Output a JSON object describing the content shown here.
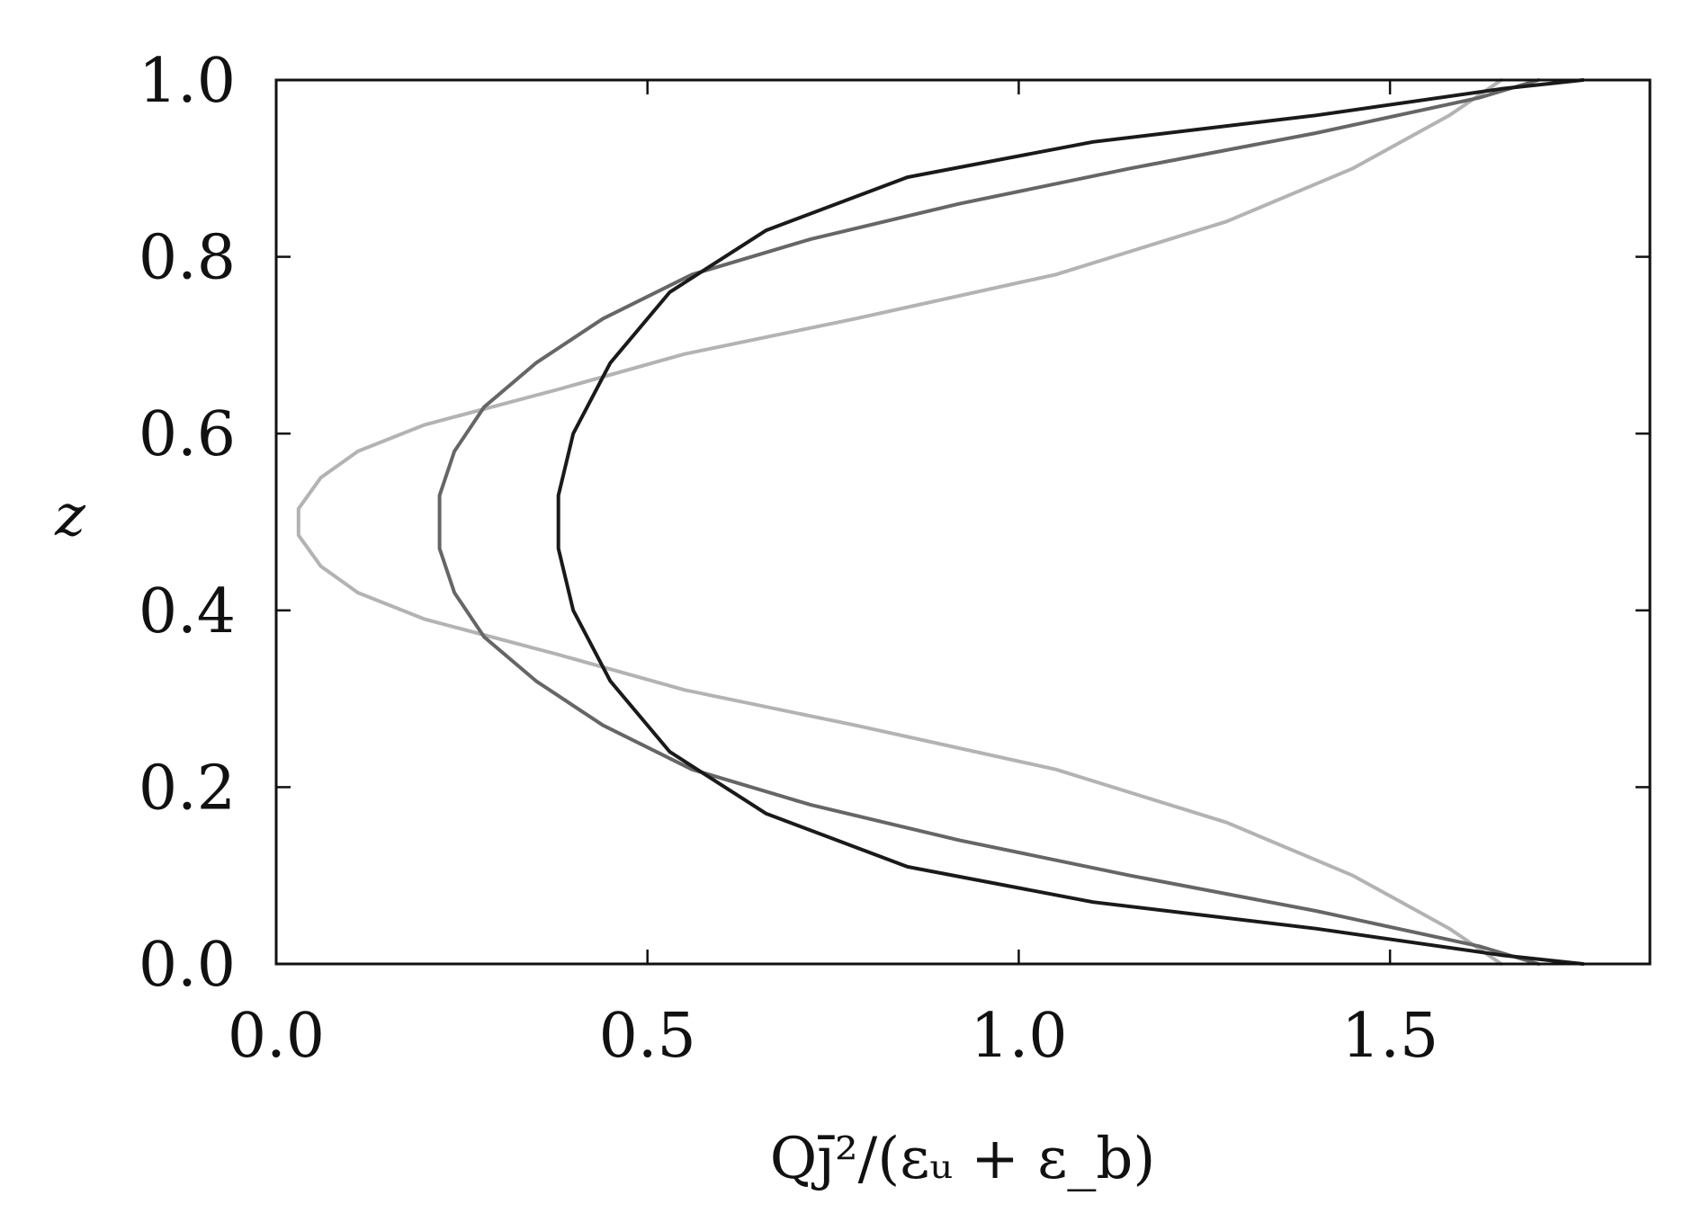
{
  "chart_data": {
    "type": "line",
    "xlabel": "Qj̄²/(εᵤ + ε_b)",
    "ylabel": "z",
    "xlim": [
      0.0,
      1.85
    ],
    "ylim": [
      0.0,
      1.0
    ],
    "xticks": [
      "0.0",
      "0.5",
      "1.0",
      "1.5"
    ],
    "yticks": [
      "0.0",
      "0.2",
      "0.4",
      "0.6",
      "0.8",
      "1.0"
    ],
    "xtick_values": [
      0.0,
      0.5,
      1.0,
      1.5
    ],
    "ytick_values": [
      0.0,
      0.2,
      0.4,
      0.6,
      0.8,
      1.0
    ],
    "grid": false,
    "series": [
      {
        "color": "#b3b3b3",
        "x": [
          1.65,
          1.58,
          1.45,
          1.28,
          1.05,
          0.78,
          0.55,
          0.38,
          0.2,
          0.11,
          0.06,
          0.03,
          0.03,
          0.06,
          0.11,
          0.2,
          0.38,
          0.55,
          0.78,
          1.05,
          1.28,
          1.45,
          1.58,
          1.65
        ],
        "y": [
          0.0,
          0.04,
          0.1,
          0.16,
          0.22,
          0.27,
          0.31,
          0.35,
          0.39,
          0.42,
          0.45,
          0.485,
          0.515,
          0.55,
          0.58,
          0.61,
          0.65,
          0.69,
          0.73,
          0.78,
          0.84,
          0.9,
          0.96,
          1.0
        ]
      },
      {
        "color": "#666666",
        "x": [
          1.7,
          1.62,
          1.4,
          1.15,
          0.92,
          0.72,
          0.56,
          0.44,
          0.35,
          0.28,
          0.24,
          0.22,
          0.22,
          0.24,
          0.28,
          0.35,
          0.44,
          0.56,
          0.72,
          0.92,
          1.15,
          1.4,
          1.62,
          1.7
        ],
        "y": [
          0.0,
          0.02,
          0.06,
          0.1,
          0.14,
          0.18,
          0.22,
          0.27,
          0.32,
          0.37,
          0.42,
          0.47,
          0.53,
          0.58,
          0.63,
          0.68,
          0.73,
          0.78,
          0.82,
          0.86,
          0.9,
          0.94,
          0.98,
          1.0
        ]
      },
      {
        "color": "#1a1a1a",
        "x": [
          1.76,
          1.65,
          1.4,
          1.1,
          0.85,
          0.66,
          0.53,
          0.45,
          0.4,
          0.38,
          0.38,
          0.4,
          0.45,
          0.53,
          0.66,
          0.85,
          1.1,
          1.4,
          1.65,
          1.76
        ],
        "y": [
          0.0,
          0.01,
          0.04,
          0.07,
          0.11,
          0.17,
          0.24,
          0.32,
          0.4,
          0.47,
          0.53,
          0.6,
          0.68,
          0.76,
          0.83,
          0.89,
          0.93,
          0.96,
          0.99,
          1.0
        ]
      }
    ]
  }
}
